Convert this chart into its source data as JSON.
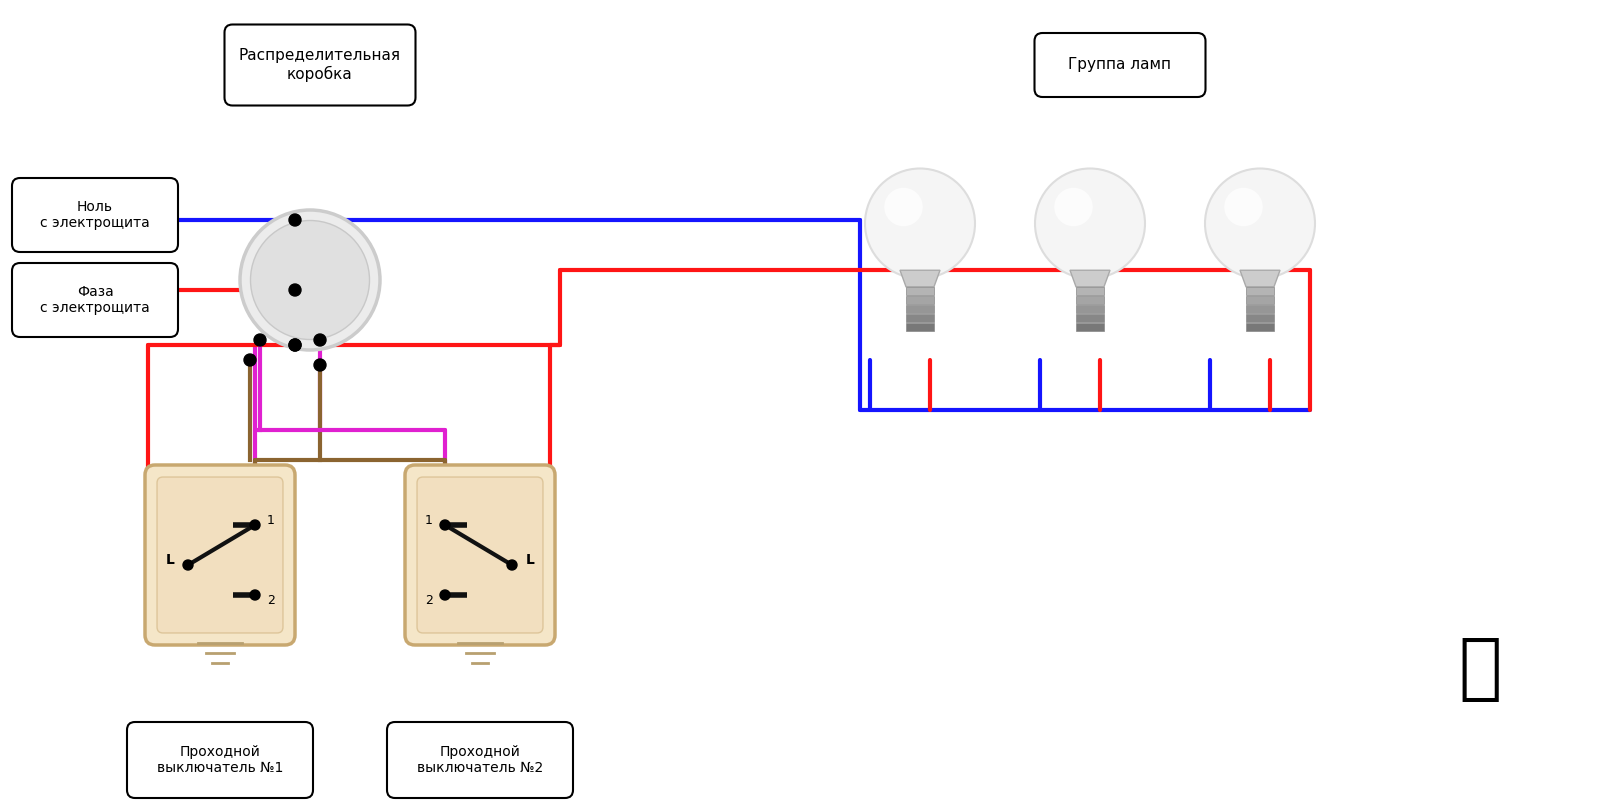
{
  "bg_color": "#ffffff",
  "fig_width": 16,
  "fig_height": 8,
  "labels": {
    "dist_box": "Распределительная\nкоробка",
    "null": "Ноль\nс электрощита",
    "phase": "Фаза\nс электрощита",
    "group_lamps": "Группа ламп",
    "switch1": "Проходной\nвыключатель №1",
    "switch2": "Проходной\nвыключатель №2"
  },
  "colors": {
    "blue": "#1515ff",
    "red": "#ff1515",
    "magenta": "#e020d0",
    "brown": "#8B6430",
    "black": "#111111",
    "switch_fill": "#f5e6c8",
    "switch_border": "#c8a870",
    "label_fill": "#ffffff",
    "label_border": "#000000",
    "junction": "#000000",
    "box_fill": "#e0e0e0",
    "box_edge": "#c0c0c0"
  },
  "lw": 3.0
}
